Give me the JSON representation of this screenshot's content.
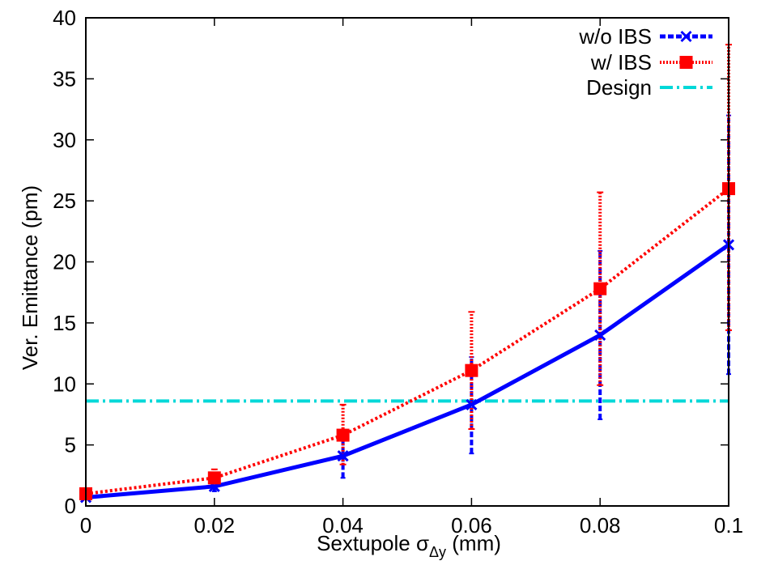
{
  "chart_data": {
    "type": "line",
    "xlabel_prefix": "Sextupole σ",
    "xlabel_sub": "Δy",
    "xlabel_suffix": " (mm)",
    "ylabel": "Ver. Emittance (pm)",
    "xlim": [
      0,
      0.1
    ],
    "ylim": [
      0,
      40
    ],
    "x_ticks": [
      "0",
      "0.02",
      "0.04",
      "0.06",
      "0.08",
      "0.1"
    ],
    "y_ticks": [
      "0",
      "5",
      "10",
      "15",
      "20",
      "25",
      "30",
      "35",
      "40"
    ],
    "grid": false,
    "legend_position": "top-right",
    "series": [
      {
        "name": "w/o IBS",
        "color": "#0000ff",
        "marker": "cross",
        "x": [
          0,
          0.02,
          0.04,
          0.06,
          0.08,
          0.1
        ],
        "y": [
          0.7,
          1.6,
          4.1,
          8.3,
          14.0,
          21.4
        ],
        "err_low": [
          0.55,
          1.2,
          2.3,
          4.3,
          7.1,
          10.8
        ],
        "err_high": [
          0.9,
          2.2,
          6.0,
          12.2,
          20.9,
          32.0
        ]
      },
      {
        "name": "w/   IBS",
        "color": "#ff0000",
        "marker": "square",
        "x": [
          0,
          0.02,
          0.04,
          0.06,
          0.08,
          0.1
        ],
        "y": [
          1.0,
          2.3,
          5.8,
          11.1,
          17.8,
          26.0
        ],
        "err_low": [
          0.8,
          1.6,
          3.4,
          6.3,
          9.9,
          14.4
        ],
        "err_high": [
          1.3,
          3.0,
          8.3,
          15.9,
          25.7,
          37.8
        ]
      },
      {
        "name": "Design",
        "color": "#00d8d8",
        "constant_y": 8.6
      }
    ]
  }
}
